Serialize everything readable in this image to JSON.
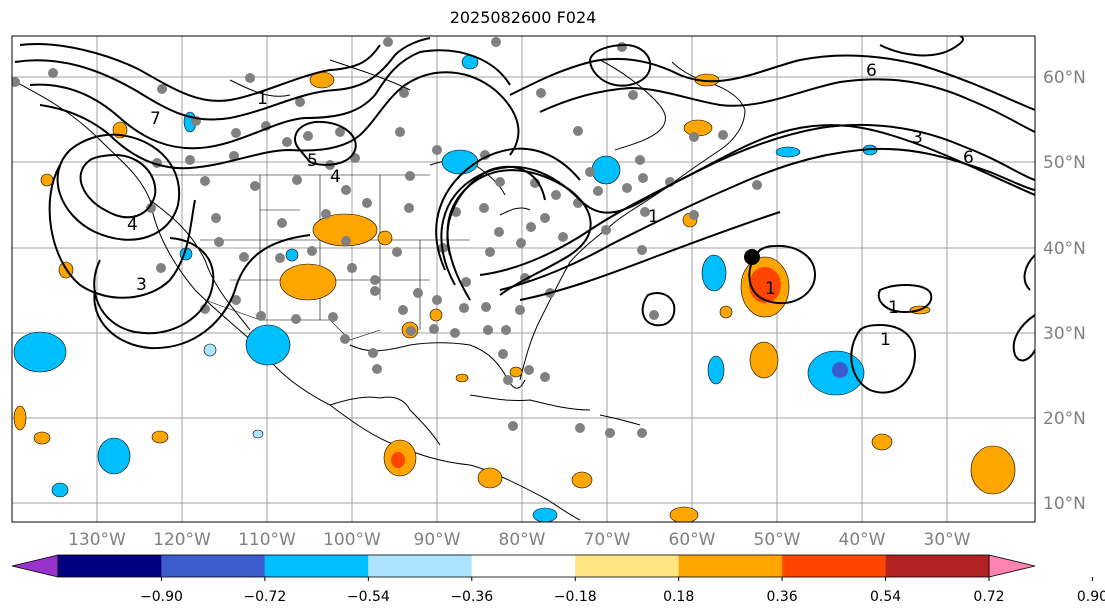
{
  "title": "2025082600 F024",
  "lat_labels": [
    "60°N",
    "50°N",
    "40°N",
    "30°N",
    "20°N",
    "10°N"
  ],
  "lon_labels": [
    "130°W",
    "120°W",
    "110°W",
    "100°W",
    "90°W",
    "80°W",
    "70°W",
    "60°W",
    "50°W",
    "40°W",
    "30°W"
  ],
  "contour_labels": [
    "1",
    "1",
    "1",
    "1",
    "1",
    "3",
    "3",
    "4",
    "4",
    "5",
    "6",
    "6",
    "7"
  ],
  "colorbar": {
    "colors": [
      "#9932cc",
      "#000080",
      "#3a5ccc",
      "#00bfff",
      "#aee3ff",
      "#ffffff",
      "#ffe680",
      "#ffa500",
      "#ff4500",
      "#b22222",
      "#ff83b0"
    ],
    "ticks": [
      "−0.90",
      "−0.72",
      "−0.54",
      "−0.36",
      "−0.18",
      "0.18",
      "0.36",
      "0.54",
      "0.72",
      "0.90"
    ]
  },
  "fill_colors": {
    "pos_light": "#ffa500",
    "pos_strong": "#ff4500",
    "neg_light": "#00bfff",
    "neg_strong": "#3a5ccc"
  },
  "marker_colors": {
    "stations": "#808080",
    "center": "#000000"
  }
}
